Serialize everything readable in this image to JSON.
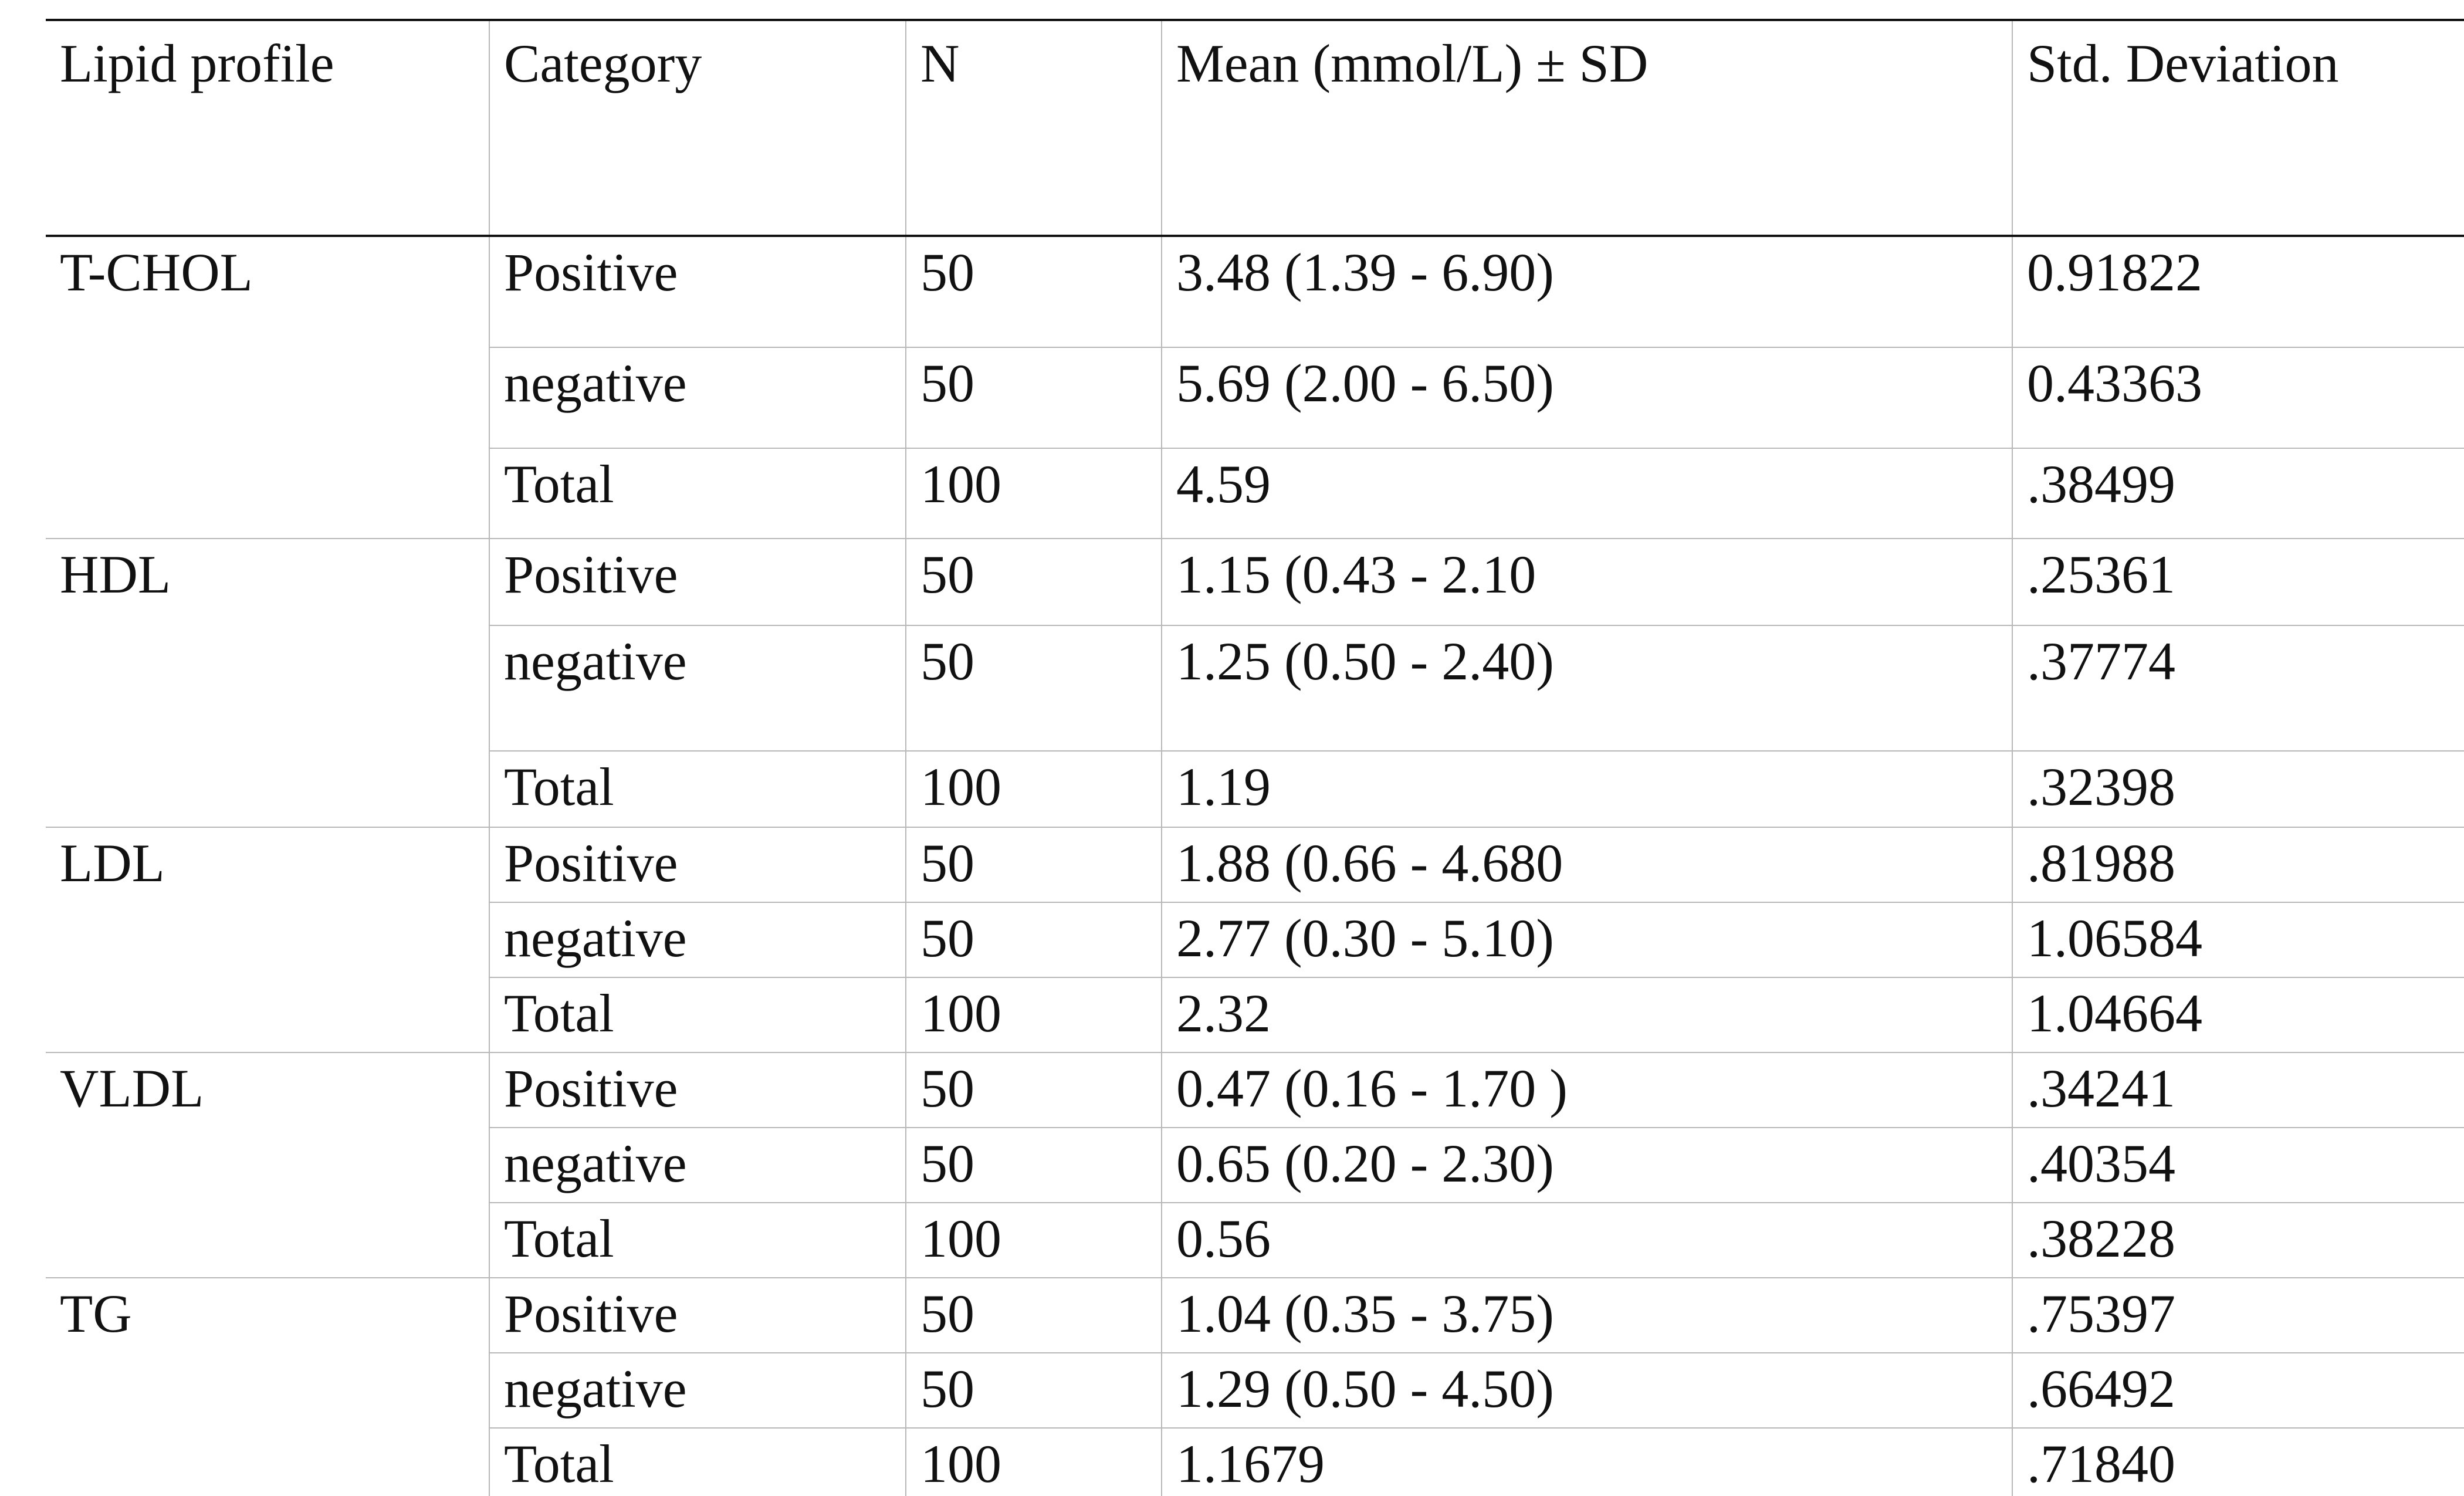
{
  "table": {
    "headers": [
      "Lipid profile",
      "Category",
      "N",
      "Mean (mmol/L) ± SD",
      "Std. Deviation"
    ],
    "groups": [
      {
        "profile": "T-CHOL",
        "rows": [
          {
            "category": "Positive",
            "n": "50",
            "mean": "3.48 (1.39 - 6.90)",
            "sd": " 0.91822"
          },
          {
            "category": "negative",
            "n": "50",
            "mean": "5.69 (2.00  - 6.50)",
            "sd": "0.43363"
          },
          {
            "category": "Total",
            "n": "100",
            "mean": "4.59",
            "sd": ".38499"
          }
        ]
      },
      {
        "profile": "HDL",
        "rows": [
          {
            "category": "Positive",
            "n": "50",
            "mean": "1.15 (0.43 - 2.10",
            "sd": ".25361"
          },
          {
            "category": "negative",
            "n": "50",
            "mean": "1.25 (0.50 - 2.40)",
            "sd": ".37774"
          },
          {
            "category": "Total",
            "n": "100",
            "mean": "1.19",
            "sd": ".32398"
          }
        ]
      },
      {
        "profile": "LDL",
        "rows": [
          {
            "category": "Positive",
            "n": "50",
            "mean": "1.88 (0.66 - 4.680",
            "sd": ".81988"
          },
          {
            "category": "negative",
            "n": "50",
            "mean": "2.77 (0.30 - 5.10)",
            "sd": "1.06584"
          },
          {
            "category": "Total",
            "n": "100",
            "mean": "2.32",
            "sd": "1.04664"
          }
        ]
      },
      {
        "profile": "VLDL",
        "rows": [
          {
            "category": "Positive",
            "n": "50",
            "mean": "0.47 (0.16 - 1.70 )",
            "sd": ".34241"
          },
          {
            "category": "negative",
            "n": "50",
            "mean": "0.65 (0.20 - 2.30)",
            "sd": ".40354"
          },
          {
            "category": "Total",
            "n": "100",
            "mean": "0.56",
            "sd": ".38228"
          }
        ]
      },
      {
        "profile": "TG",
        "rows": [
          {
            "category": "Positive",
            "n": "50",
            "mean": "1.04 (0.35 - 3.75)",
            "sd": ".75397"
          },
          {
            "category": "negative",
            "n": "50",
            "mean": "1.29 (0.50 - 4.50)",
            "sd": ".66492"
          },
          {
            "category": "Total",
            "n": "100",
            "mean": "1.1679",
            "sd": ".71840"
          }
        ]
      }
    ]
  }
}
